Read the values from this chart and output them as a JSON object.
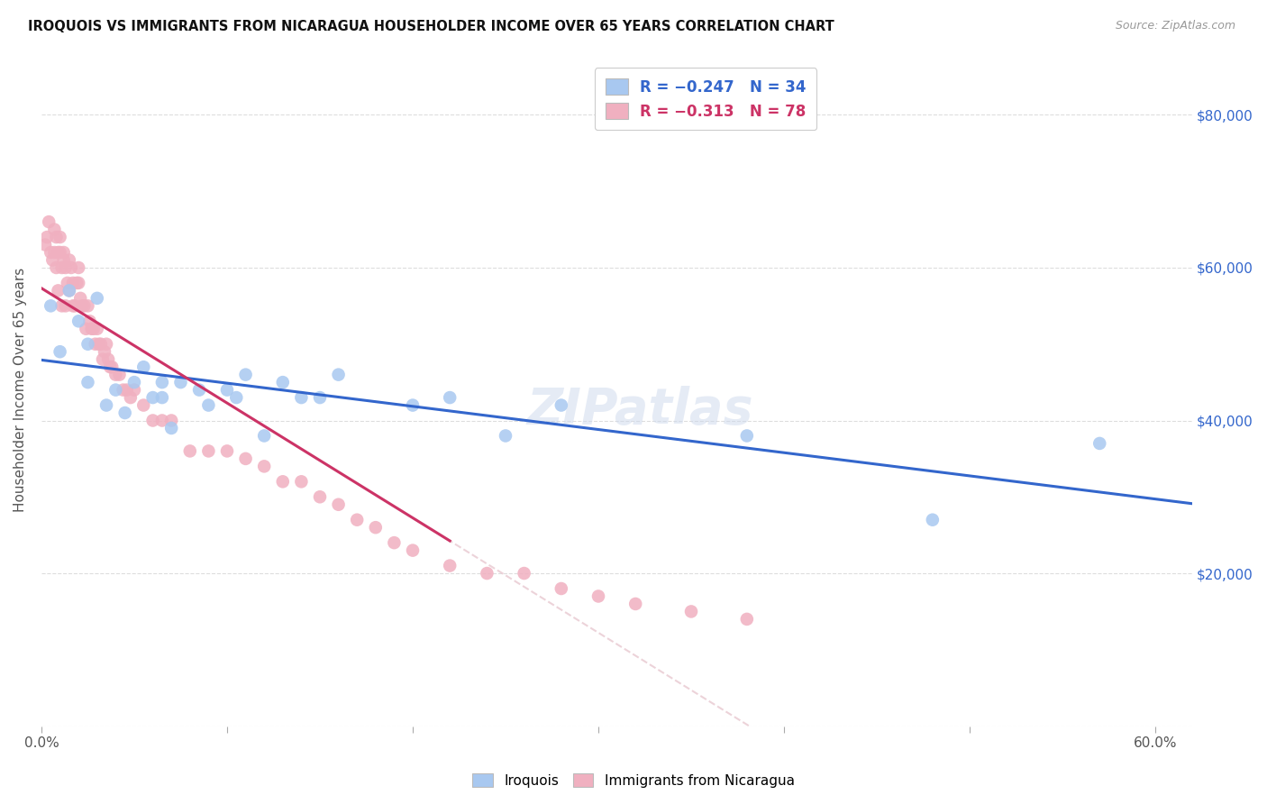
{
  "title": "IROQUOIS VS IMMIGRANTS FROM NICARAGUA HOUSEHOLDER INCOME OVER 65 YEARS CORRELATION CHART",
  "source": "Source: ZipAtlas.com",
  "ylabel": "Householder Income Over 65 years",
  "color_iroquois": "#a8c8f0",
  "color_nicaragua": "#f0b0c0",
  "color_iroquois_line": "#3366cc",
  "color_nicaragua_line": "#cc3366",
  "color_dashed_line": "#e8c8d0",
  "watermark": "ZIPatlas",
  "iroquois_x": [
    0.005,
    0.01,
    0.015,
    0.02,
    0.025,
    0.025,
    0.03,
    0.035,
    0.04,
    0.045,
    0.05,
    0.055,
    0.06,
    0.065,
    0.065,
    0.07,
    0.075,
    0.085,
    0.09,
    0.1,
    0.105,
    0.11,
    0.12,
    0.13,
    0.14,
    0.15,
    0.16,
    0.2,
    0.22,
    0.25,
    0.28,
    0.38,
    0.48,
    0.57
  ],
  "iroquois_y": [
    55000,
    49000,
    57000,
    53000,
    45000,
    50000,
    56000,
    42000,
    44000,
    41000,
    45000,
    47000,
    43000,
    43000,
    45000,
    39000,
    45000,
    44000,
    42000,
    44000,
    43000,
    46000,
    38000,
    45000,
    43000,
    43000,
    46000,
    42000,
    43000,
    38000,
    42000,
    38000,
    27000,
    37000
  ],
  "nicaragua_x": [
    0.002,
    0.003,
    0.004,
    0.005,
    0.006,
    0.007,
    0.007,
    0.008,
    0.008,
    0.009,
    0.009,
    0.01,
    0.01,
    0.011,
    0.011,
    0.012,
    0.012,
    0.013,
    0.013,
    0.014,
    0.015,
    0.015,
    0.016,
    0.017,
    0.017,
    0.018,
    0.019,
    0.02,
    0.02,
    0.021,
    0.022,
    0.023,
    0.024,
    0.025,
    0.026,
    0.027,
    0.028,
    0.029,
    0.03,
    0.031,
    0.032,
    0.033,
    0.034,
    0.035,
    0.036,
    0.037,
    0.038,
    0.04,
    0.042,
    0.044,
    0.046,
    0.048,
    0.05,
    0.055,
    0.06,
    0.065,
    0.07,
    0.08,
    0.09,
    0.1,
    0.11,
    0.12,
    0.13,
    0.14,
    0.15,
    0.16,
    0.17,
    0.18,
    0.19,
    0.2,
    0.22,
    0.24,
    0.26,
    0.28,
    0.3,
    0.32,
    0.35,
    0.38
  ],
  "nicaragua_y": [
    63000,
    64000,
    66000,
    62000,
    61000,
    62000,
    65000,
    64000,
    60000,
    62000,
    57000,
    62000,
    64000,
    60000,
    55000,
    61000,
    62000,
    60000,
    55000,
    58000,
    61000,
    57000,
    60000,
    55000,
    58000,
    55000,
    58000,
    58000,
    60000,
    56000,
    55000,
    55000,
    52000,
    55000,
    53000,
    52000,
    52000,
    50000,
    52000,
    50000,
    50000,
    48000,
    49000,
    50000,
    48000,
    47000,
    47000,
    46000,
    46000,
    44000,
    44000,
    43000,
    44000,
    42000,
    40000,
    40000,
    40000,
    36000,
    36000,
    36000,
    35000,
    34000,
    32000,
    32000,
    30000,
    29000,
    27000,
    26000,
    24000,
    23000,
    21000,
    20000,
    20000,
    18000,
    17000,
    16000,
    15000,
    14000
  ],
  "xlim": [
    0.0,
    0.62
  ],
  "ylim": [
    0,
    88000
  ],
  "x_tick_pos": [
    0.0,
    0.1,
    0.2,
    0.3,
    0.4,
    0.5,
    0.6
  ],
  "x_tick_labels": [
    "0.0%",
    "",
    "",
    "",
    "",
    "",
    "60.0%"
  ],
  "y_tick_pos": [
    0,
    20000,
    40000,
    60000,
    80000
  ],
  "y_tick_labels_right": [
    "",
    "$20,000",
    "$40,000",
    "$60,000",
    "$80,000"
  ]
}
